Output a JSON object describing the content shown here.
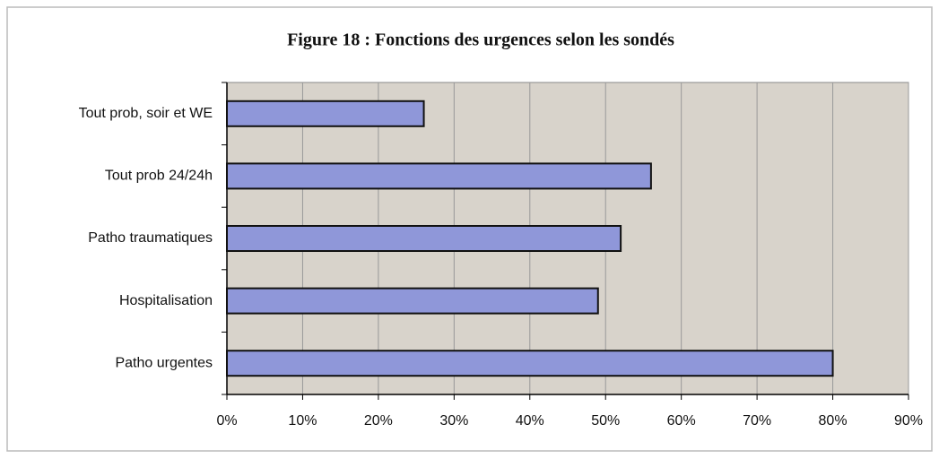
{
  "chart_data": {
    "type": "hbar",
    "title": "Figure 18 : Fonctions des urgences selon les sondés",
    "categories": [
      "Tout prob, soir et WE",
      "Tout prob 24/24h",
      "Patho traumatiques",
      "Hospitalisation",
      "Patho urgentes"
    ],
    "values": [
      26,
      56,
      52,
      49,
      80
    ],
    "color": "#8f97d9",
    "xlim": [
      0,
      90
    ],
    "xticks": [
      {
        "value": 0,
        "label": "0%"
      },
      {
        "value": 10,
        "label": "10%"
      },
      {
        "value": 20,
        "label": "20%"
      },
      {
        "value": 30,
        "label": "30%"
      },
      {
        "value": 40,
        "label": "40%"
      },
      {
        "value": 50,
        "label": "50%"
      },
      {
        "value": 60,
        "label": "60%"
      },
      {
        "value": 70,
        "label": "70%"
      },
      {
        "value": 80,
        "label": "80%"
      },
      {
        "value": 90,
        "label": "90%"
      }
    ],
    "grid": true
  }
}
